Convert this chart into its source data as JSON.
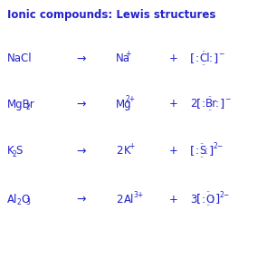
{
  "title": "Ionic compounds: Lewis structures",
  "title_color": "#2222cc",
  "bg_color": "#ffffff",
  "text_color": "#2222cc",
  "figsize": [
    2.95,
    2.85
  ],
  "dpi": 100,
  "rows": [
    {
      "formula_parts": [
        {
          "t": "NaCl",
          "sub": null
        }
      ],
      "arrow": "→",
      "cation_coeff": "",
      "cation": "Na",
      "cation_charge": "+",
      "anion_coeff": "",
      "anion_symbol": "Cl",
      "anion_charge": "−"
    },
    {
      "formula_parts": [
        {
          "t": "MgBr",
          "sub": "2"
        }
      ],
      "arrow": "→",
      "cation_coeff": "",
      "cation": "Mg",
      "cation_charge": "2+",
      "anion_coeff": "2",
      "anion_symbol": "Br",
      "anion_charge": "−"
    },
    {
      "formula_parts": [
        {
          "t": "K",
          "sub": "2"
        },
        {
          "t": "S",
          "sub": null
        }
      ],
      "arrow": "→",
      "cation_coeff": "2",
      "cation": "K",
      "cation_charge": "+",
      "anion_coeff": "",
      "anion_symbol": "S",
      "anion_charge": "2−"
    },
    {
      "formula_parts": [
        {
          "t": "Al",
          "sub": "2"
        },
        {
          "t": "O",
          "sub": "3"
        }
      ],
      "arrow": "→",
      "cation_coeff": "2",
      "cation": "Al",
      "cation_charge": "3+",
      "anion_coeff": "3",
      "anion_symbol": "O",
      "anion_charge": "2−"
    }
  ]
}
